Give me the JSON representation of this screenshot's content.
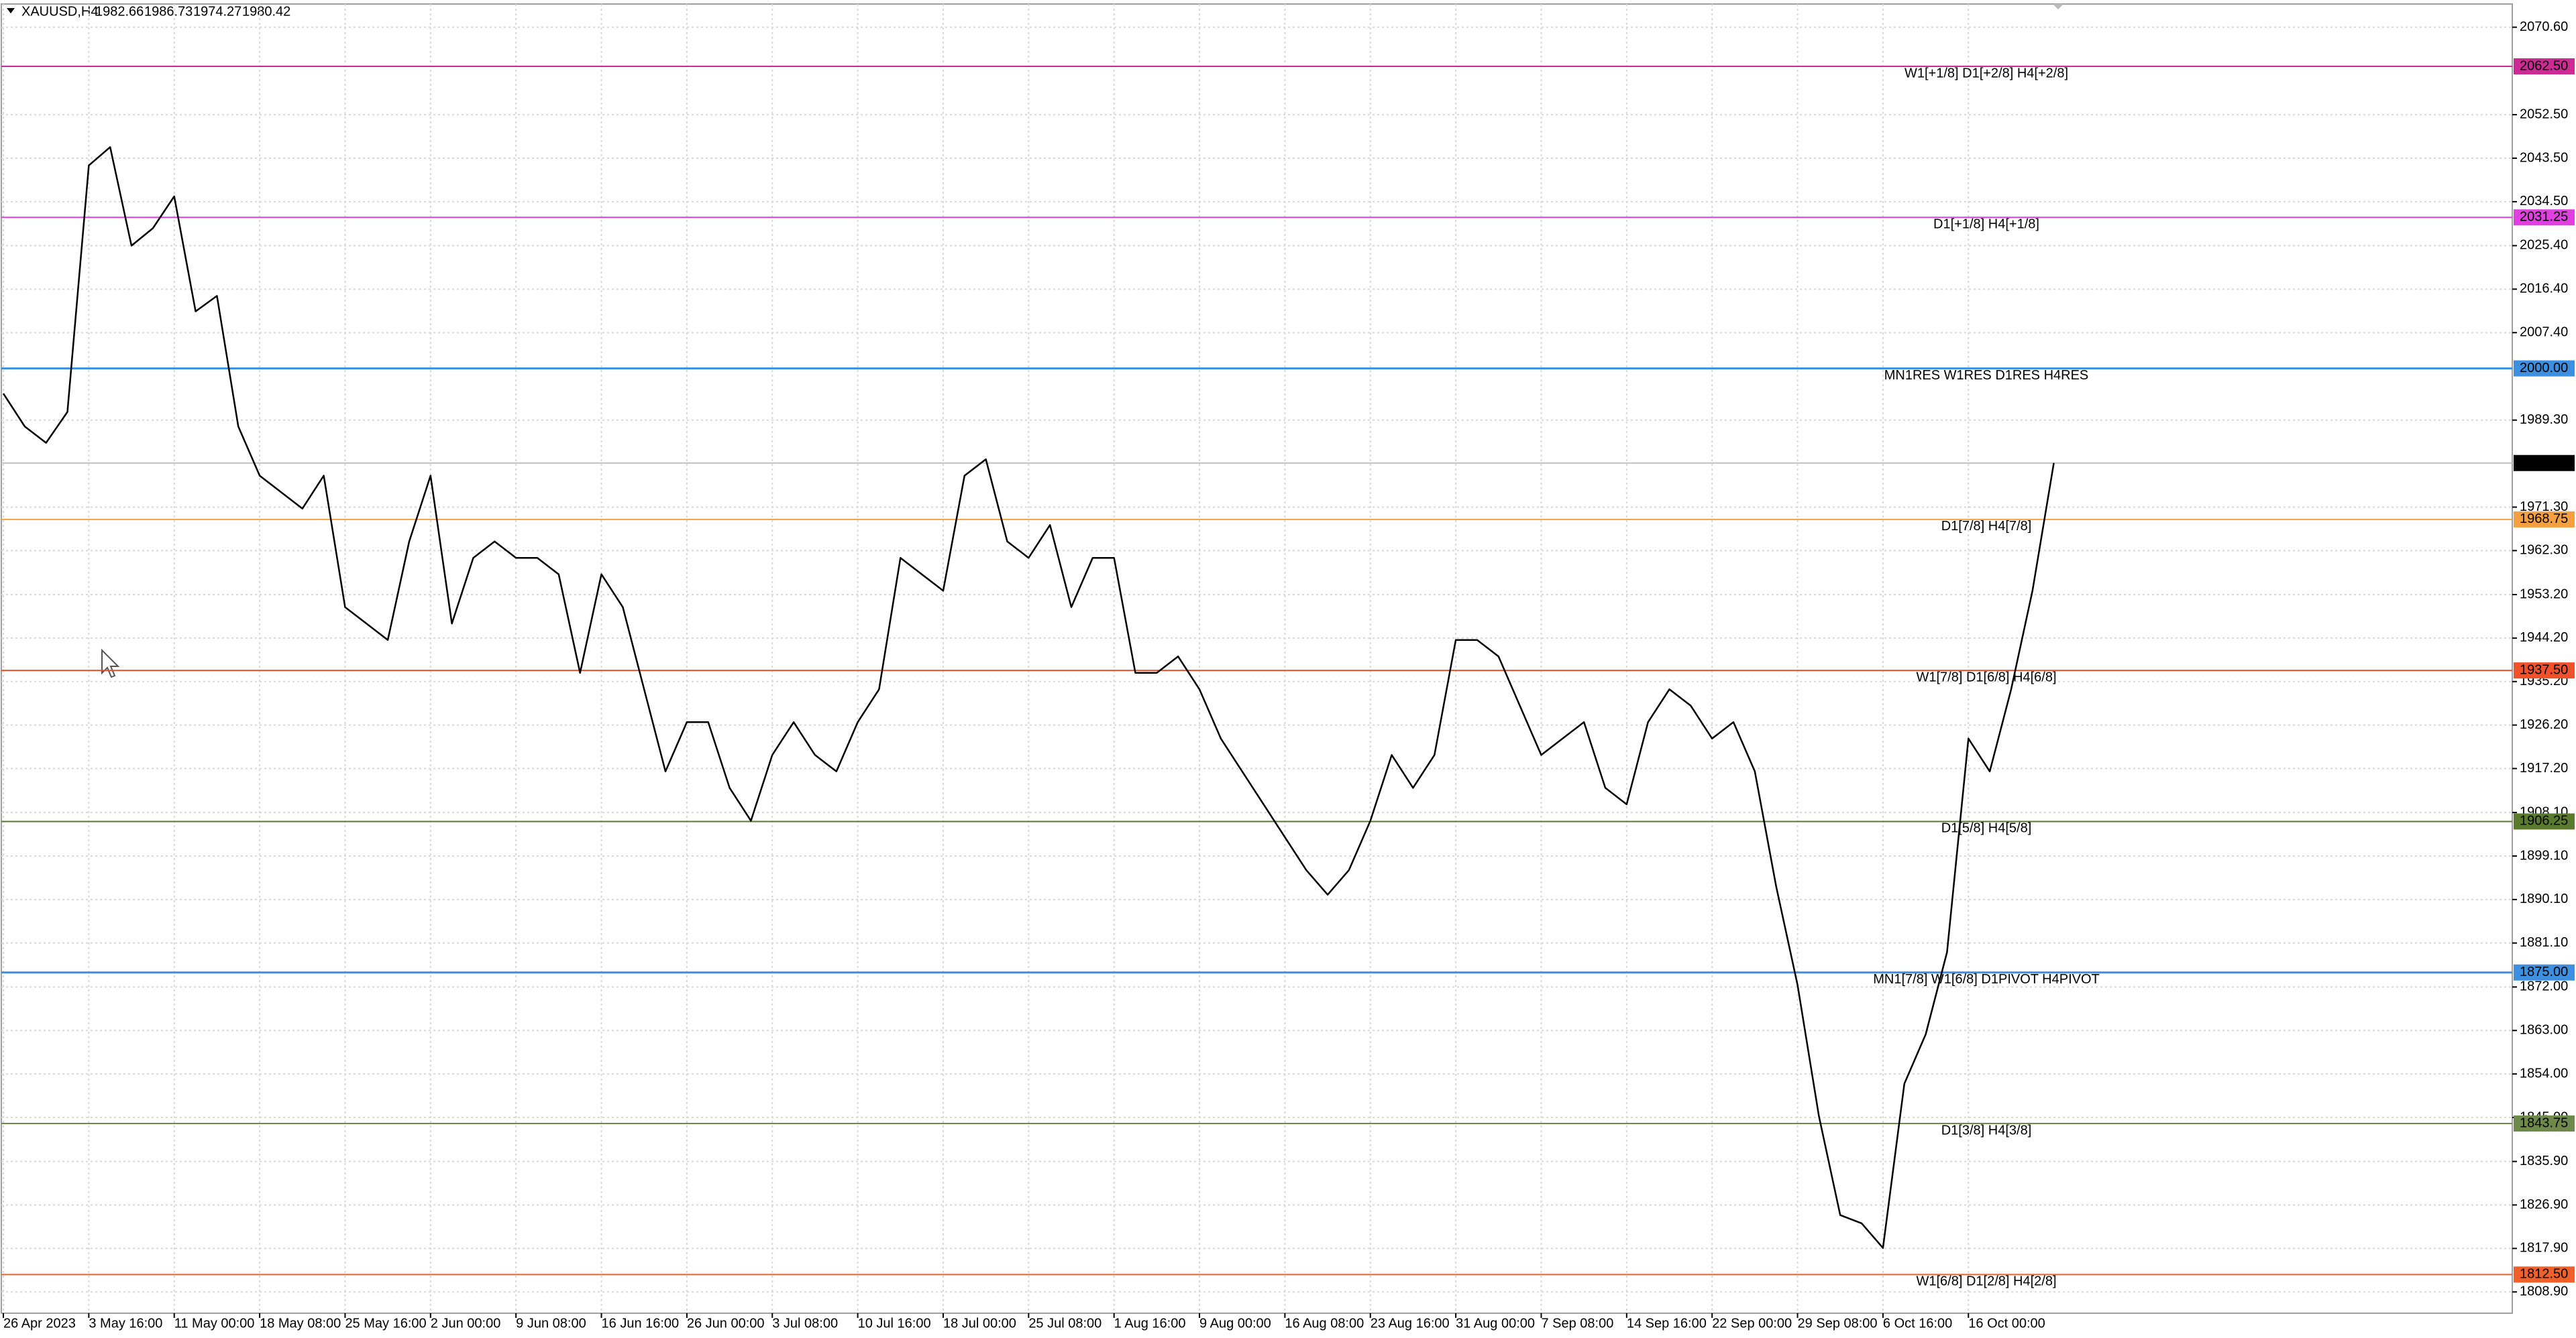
{
  "chart_data": {
    "type": "line",
    "header": {
      "symbol": "XAUUSD,H4",
      "ohlc": [
        1982.66,
        1986.73,
        1974.27,
        1980.42
      ]
    },
    "color": "#000000",
    "grid": true,
    "categories": [
      "26 Apr 2023",
      null,
      null,
      null,
      "3 May 16:00",
      null,
      null,
      null,
      "11 May 00:00",
      null,
      null,
      null,
      "18 May 08:00",
      null,
      null,
      null,
      "25 May 16:00",
      null,
      null,
      null,
      "2 Jun 00:00",
      null,
      null,
      null,
      "9 Jun 08:00",
      null,
      null,
      null,
      "16 Jun 16:00",
      null,
      null,
      null,
      "26 Jun 00:00",
      null,
      null,
      null,
      "3 Jul 08:00",
      null,
      null,
      null,
      "10 Jul 16:00",
      null,
      null,
      null,
      "18 Jul 00:00",
      null,
      null,
      null,
      "25 Jul 08:00",
      null,
      null,
      null,
      "1 Aug 16:00",
      null,
      null,
      null,
      "9 Aug 00:00",
      null,
      null,
      null,
      "16 Aug 08:00",
      null,
      null,
      null,
      "23 Aug 16:00",
      null,
      null,
      null,
      "31 Aug 00:00",
      null,
      null,
      null,
      "7 Sep 08:00",
      null,
      null,
      null,
      "14 Sep 16:00",
      null,
      null,
      null,
      "22 Sep 00:00",
      null,
      null,
      null,
      "29 Sep 08:00",
      null,
      null,
      null,
      "6 Oct 16:00",
      null,
      null,
      null,
      "16 Oct 00:00",
      null,
      null,
      null,
      null
    ],
    "values": [
      1994.8,
      1988,
      1984.6,
      1991,
      2042,
      2045.8,
      2025.4,
      2029,
      2035.6,
      2011.8,
      2015,
      1988,
      1977.8,
      1974.4,
      1971,
      1977.8,
      1950.6,
      1947.2,
      1943.8,
      1964.2,
      1977.8,
      1947.2,
      1960.8,
      1964.2,
      1960.8,
      1960.8,
      1957.4,
      1937,
      1957.4,
      1950.6,
      1933.6,
      1916.6,
      1926.8,
      1926.8,
      1913.2,
      1906.4,
      1920,
      1926.8,
      1920,
      1916.6,
      1926.8,
      1933.6,
      1960.8,
      1957.4,
      1954,
      1977.8,
      1981.2,
      1964.2,
      1960.8,
      1967.6,
      1950.6,
      1960.8,
      1960.8,
      1937,
      1937,
      1940.4,
      1933.6,
      1923.4,
      1916.6,
      1909.8,
      1903,
      1896.2,
      1891.1,
      1896.2,
      1906.4,
      1920,
      1913.2,
      1920,
      1943.8,
      1943.8,
      1940.4,
      1930.2,
      1920,
      1923.4,
      1926.8,
      1913.2,
      1909.8,
      1926.8,
      1933.6,
      1930.2,
      1923.4,
      1926.8,
      1916.6,
      1892.8,
      1872.4,
      1845.3,
      1824.8,
      1823.1,
      1818,
      1852,
      1862.2,
      1879.2,
      1923.4,
      1916.6,
      1933.6,
      1954,
      1980.42
    ],
    "ylim": [
      1804.5,
      2075.4
    ],
    "yticks": [
      {
        "value": 2070.6,
        "label": "2070.60"
      },
      {
        "value": 2052.5,
        "label": "2052.50"
      },
      {
        "value": 2043.5,
        "label": "2043.50"
      },
      {
        "value": 2034.5,
        "label": "2034.50"
      },
      {
        "value": 2025.4,
        "label": "2025.40"
      },
      {
        "value": 2016.4,
        "label": "2016.40"
      },
      {
        "value": 2007.4,
        "label": "2007.40"
      },
      {
        "value": 1989.3,
        "label": "1989.30"
      },
      {
        "value": 1971.3,
        "label": "1971.30"
      },
      {
        "value": 1962.3,
        "label": "1962.30"
      },
      {
        "value": 1953.2,
        "label": "1953.20"
      },
      {
        "value": 1944.2,
        "label": "1944.20"
      },
      {
        "value": 1935.2,
        "label": "1935.20"
      },
      {
        "value": 1926.2,
        "label": "1926.20"
      },
      {
        "value": 1917.2,
        "label": "1917.20"
      },
      {
        "value": 1908.1,
        "label": "1908.10"
      },
      {
        "value": 1899.1,
        "label": "1899.10"
      },
      {
        "value": 1890.1,
        "label": "1890.10"
      },
      {
        "value": 1881.1,
        "label": "1881.10"
      },
      {
        "value": 1872,
        "label": "1872.00"
      },
      {
        "value": 1863,
        "label": "1863.00"
      },
      {
        "value": 1854,
        "label": "1854.00"
      },
      {
        "value": 1845,
        "label": "1845.00"
      },
      {
        "value": 1835.9,
        "label": "1835.90"
      },
      {
        "value": 1826.9,
        "label": "1826.90"
      },
      {
        "value": 1817.9,
        "label": "1817.90"
      },
      {
        "value": 1808.9,
        "label": "1808.90"
      }
    ],
    "current_price": 1980.42,
    "levels": [
      {
        "value": 2062.5,
        "label": "2062.50",
        "name": "W1[+1/8] D1[+2/8] H4[+2/8]",
        "color": "#cc2a94"
      },
      {
        "value": 2031.25,
        "label": "2031.25",
        "name": "D1[+1/8] H4[+1/8]",
        "color": "#e040e0"
      },
      {
        "value": 2000,
        "label": "2000.00",
        "name": "MN1RES W1RES D1RES H4RES",
        "color": "#3d8fe0"
      },
      {
        "value": 1968.75,
        "label": "1968.75",
        "name": "D1[7/8] H4[7/8]",
        "color": "#f5a040"
      },
      {
        "value": 1937.5,
        "label": "1937.50",
        "name": "W1[7/8] D1[6/8] H4[6/8]",
        "color": "#f0502a"
      },
      {
        "value": 1906.25,
        "label": "1906.25",
        "name": "D1[5/8] H4[5/8]",
        "color": "#5a7a2e"
      },
      {
        "value": 1875,
        "label": "1875.00",
        "name": "MN1[7/8] W1[6/8] D1PIVOT H4PIVOT",
        "color": "#3d8fe0"
      },
      {
        "value": 1843.75,
        "label": "1843.75",
        "name": "D1[3/8] H4[3/8]",
        "color": "#6e8a4a"
      },
      {
        "value": 1812.5,
        "label": "1812.50",
        "name": "W1[6/8] D1[2/8] H4[2/8]",
        "color": "#f0602a"
      }
    ]
  }
}
